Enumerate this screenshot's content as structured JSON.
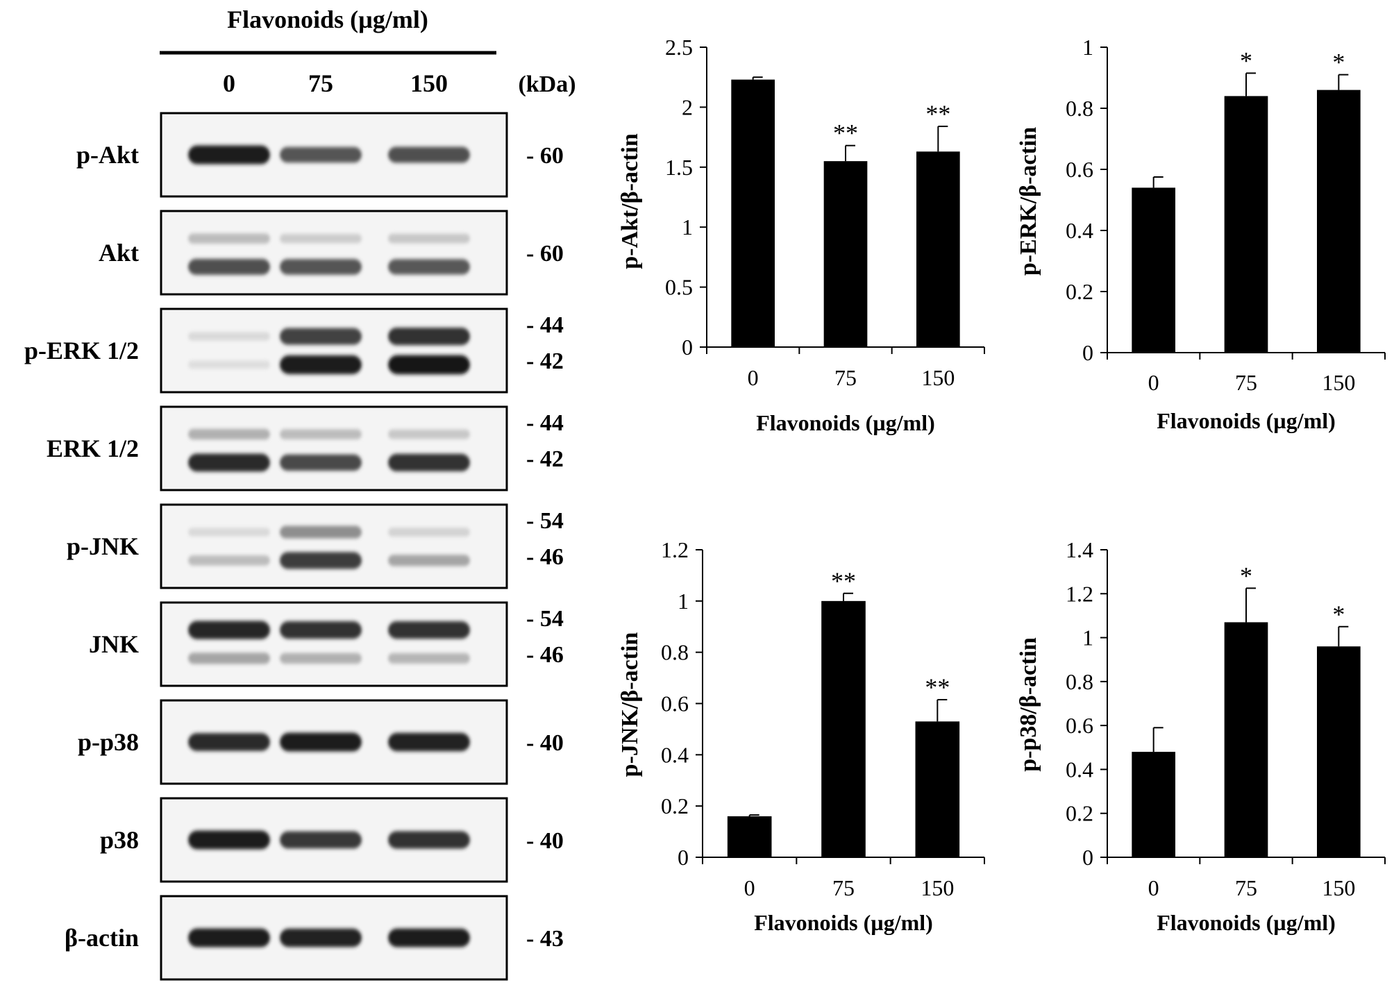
{
  "blot": {
    "title": "Flavonoids (µg/ml)",
    "lanes": [
      "0",
      "75",
      "150"
    ],
    "kda_label": "(kDa)",
    "rows": [
      {
        "label": "p-Akt",
        "markers": [
          "- 60"
        ],
        "bands": [
          [
            0.95,
            0.7,
            0.72
          ]
        ]
      },
      {
        "label": "Akt",
        "markers": [
          "- 60"
        ],
        "bands": [
          [
            0.25,
            0.18,
            0.2
          ],
          [
            0.72,
            0.7,
            0.68
          ]
        ]
      },
      {
        "label": "p-ERK 1/2",
        "markers": [
          "- 44",
          "- 42"
        ],
        "bands": [
          [
            0.12,
            0.78,
            0.85
          ],
          [
            0.1,
            0.95,
            0.98
          ]
        ]
      },
      {
        "label": "ERK 1/2",
        "markers": [
          "- 44",
          "- 42"
        ],
        "bands": [
          [
            0.3,
            0.25,
            0.2
          ],
          [
            0.88,
            0.75,
            0.85
          ]
        ]
      },
      {
        "label": "p-JNK",
        "markers": [
          "- 54",
          "- 46"
        ],
        "bands": [
          [
            0.12,
            0.45,
            0.15
          ],
          [
            0.25,
            0.8,
            0.35
          ]
        ]
      },
      {
        "label": "JNK",
        "markers": [
          "- 54",
          "- 46"
        ],
        "bands": [
          [
            0.9,
            0.85,
            0.85
          ],
          [
            0.35,
            0.3,
            0.28
          ]
        ]
      },
      {
        "label": "p-p38",
        "markers": [
          "- 40"
        ],
        "bands": [
          [
            0.88,
            0.95,
            0.92
          ]
        ]
      },
      {
        "label": "p38",
        "markers": [
          "- 40"
        ],
        "bands": [
          [
            0.95,
            0.82,
            0.85
          ]
        ]
      },
      {
        "label": "β-actin",
        "markers": [
          "- 43"
        ],
        "bands": [
          [
            0.95,
            0.92,
            0.93
          ]
        ]
      }
    ]
  },
  "chart_data": [
    {
      "type": "bar",
      "categories": [
        "0",
        "75",
        "150"
      ],
      "values": [
        2.23,
        1.55,
        1.63
      ],
      "errors": [
        0.02,
        0.13,
        0.21
      ],
      "significance": [
        "",
        "**",
        "**"
      ],
      "ylabel": "p-Akt/β-actin",
      "xlabel": "Flavonoids (µg/ml)",
      "ylim": [
        0,
        2.5
      ],
      "yticks": [
        "0",
        "0.5",
        "1",
        "1.5",
        "2",
        "2.5"
      ],
      "bar_color": "#000000"
    },
    {
      "type": "bar",
      "categories": [
        "0",
        "75",
        "150"
      ],
      "values": [
        0.54,
        0.84,
        0.86
      ],
      "errors": [
        0.035,
        0.075,
        0.05
      ],
      "significance": [
        "",
        "*",
        "*"
      ],
      "ylabel": "p-ERK/β-actin",
      "xlabel": "Flavonoids (µg/ml)",
      "ylim": [
        0,
        1
      ],
      "yticks": [
        "0",
        "0.2",
        "0.4",
        "0.6",
        "0.8",
        "1"
      ],
      "bar_color": "#000000"
    },
    {
      "type": "bar",
      "categories": [
        "0",
        "75",
        "150"
      ],
      "values": [
        0.16,
        1.0,
        0.53
      ],
      "errors": [
        0.005,
        0.03,
        0.085
      ],
      "significance": [
        "",
        "**",
        "**"
      ],
      "ylabel": "p-JNK/β-actin",
      "xlabel": "Flavonoids (µg/ml)",
      "ylim": [
        0,
        1.2
      ],
      "yticks": [
        "0",
        "0.2",
        "0.4",
        "0.6",
        "0.8",
        "1",
        "1.2"
      ],
      "bar_color": "#000000"
    },
    {
      "type": "bar",
      "categories": [
        "0",
        "75",
        "150"
      ],
      "values": [
        0.48,
        1.07,
        0.96
      ],
      "errors": [
        0.11,
        0.155,
        0.09
      ],
      "significance": [
        "",
        "*",
        "*"
      ],
      "ylabel": "p-p38/β-actin",
      "xlabel": "Flavonoids (µg/ml)",
      "ylim": [
        0,
        1.4
      ],
      "yticks": [
        "0",
        "0.2",
        "0.4",
        "0.6",
        "0.8",
        "1",
        "1.2",
        "1.4"
      ],
      "bar_color": "#000000"
    }
  ]
}
